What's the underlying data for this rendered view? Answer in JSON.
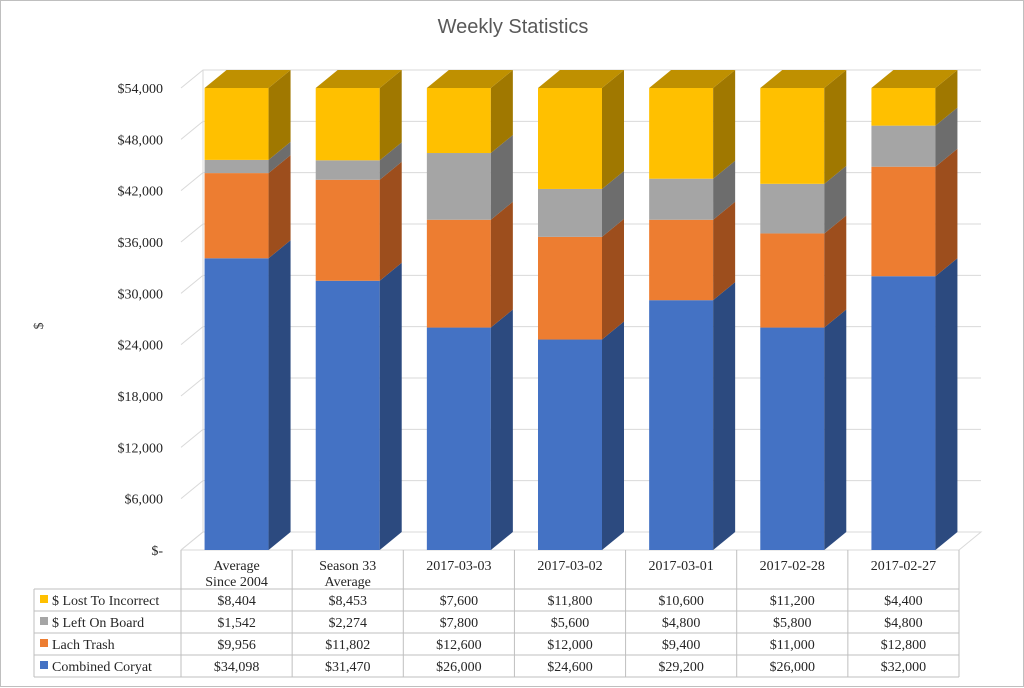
{
  "chart_data": {
    "type": "bar",
    "stacked": true,
    "three_d": true,
    "title": "Weekly Statistics",
    "xlabel": "",
    "ylabel": "$",
    "ylim": [
      0,
      54000
    ],
    "yticks": [
      0,
      6000,
      12000,
      18000,
      24000,
      30000,
      36000,
      42000,
      48000,
      54000
    ],
    "ytick_labels": [
      "$-",
      "$6,000",
      "$12,000",
      "$18,000",
      "$24,000",
      "$30,000",
      "$36,000",
      "$42,000",
      "$48,000",
      "$54,000"
    ],
    "categories": [
      [
        "Average",
        "Since 2004"
      ],
      [
        "Season 33",
        "Average"
      ],
      [
        "2017-03-03"
      ],
      [
        "2017-03-02"
      ],
      [
        "2017-03-01"
      ],
      [
        "2017-02-28"
      ],
      [
        "2017-02-27"
      ]
    ],
    "series": [
      {
        "name": "Combined Coryat",
        "color": "#4472c4",
        "side_color": "#2c4a7f",
        "top_color": "#36609f",
        "values": [
          34098,
          31470,
          26000,
          24600,
          29200,
          26000,
          32000
        ],
        "labels": [
          "$34,098",
          "$31,470",
          "$26,000",
          "$24,600",
          "$29,200",
          "$26,000",
          "$32,000"
        ]
      },
      {
        "name": "Lach Trash",
        "color": "#ed7d31",
        "side_color": "#9d4e1d",
        "top_color": "#c96a28",
        "values": [
          9956,
          11802,
          12600,
          12000,
          9400,
          11000,
          12800
        ],
        "labels": [
          "$9,956",
          "$11,802",
          "$12,600",
          "$12,000",
          "$9,400",
          "$11,000",
          "$12,800"
        ]
      },
      {
        "name": "$ Left On Board",
        "color": "#a5a5a5",
        "side_color": "#6d6d6d",
        "top_color": "#8a8a8a",
        "values": [
          1542,
          2274,
          7800,
          5600,
          4800,
          5800,
          4800
        ],
        "labels": [
          "$1,542",
          "$2,274",
          "$7,800",
          "$5,600",
          "$4,800",
          "$5,800",
          "$4,800"
        ]
      },
      {
        "name": "$ Lost To Incorrect",
        "color": "#ffc000",
        "side_color": "#a07800",
        "top_color": "#bf9000",
        "values": [
          8404,
          8453,
          7600,
          11800,
          10600,
          11200,
          4400
        ],
        "labels": [
          "$8,404",
          "$8,453",
          "$7,600",
          "$11,800",
          "$10,600",
          "$11,200",
          "$4,400"
        ]
      }
    ],
    "data_table": true,
    "gridlines": true
  }
}
